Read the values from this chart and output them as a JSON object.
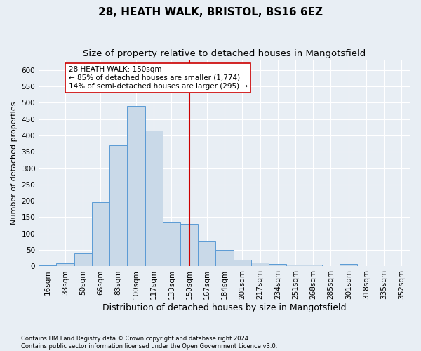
{
  "title": "28, HEATH WALK, BRISTOL, BS16 6EZ",
  "subtitle": "Size of property relative to detached houses in Mangotsfield",
  "xlabel": "Distribution of detached houses by size in Mangotsfield",
  "ylabel": "Number of detached properties",
  "footnote1": "Contains HM Land Registry data © Crown copyright and database right 2024.",
  "footnote2": "Contains public sector information licensed under the Open Government Licence v3.0.",
  "annotation_title": "28 HEATH WALK: 150sqm",
  "annotation_line1": "← 85% of detached houses are smaller (1,774)",
  "annotation_line2": "14% of semi-detached houses are larger (295) →",
  "marker_value": 150,
  "bar_color": "#c9d9e8",
  "bar_edge_color": "#5b9bd5",
  "marker_color": "#cc0000",
  "background_color": "#e8eef4",
  "categories": [
    "16sqm",
    "33sqm",
    "50sqm",
    "66sqm",
    "83sqm",
    "100sqm",
    "117sqm",
    "133sqm",
    "150sqm",
    "167sqm",
    "184sqm",
    "201sqm",
    "217sqm",
    "234sqm",
    "251sqm",
    "268sqm",
    "285sqm",
    "301sqm",
    "318sqm",
    "335sqm",
    "352sqm"
  ],
  "values": [
    3,
    10,
    40,
    195,
    370,
    490,
    415,
    135,
    130,
    75,
    50,
    20,
    12,
    8,
    6,
    5,
    0,
    7,
    0,
    0,
    0
  ],
  "ylim": [
    0,
    630
  ],
  "yticks": [
    0,
    50,
    100,
    150,
    200,
    250,
    300,
    350,
    400,
    450,
    500,
    550,
    600
  ],
  "grid_color": "#ffffff",
  "title_fontsize": 11,
  "subtitle_fontsize": 9.5,
  "xlabel_fontsize": 9,
  "ylabel_fontsize": 8,
  "tick_fontsize": 7.5,
  "footnote_fontsize": 6
}
